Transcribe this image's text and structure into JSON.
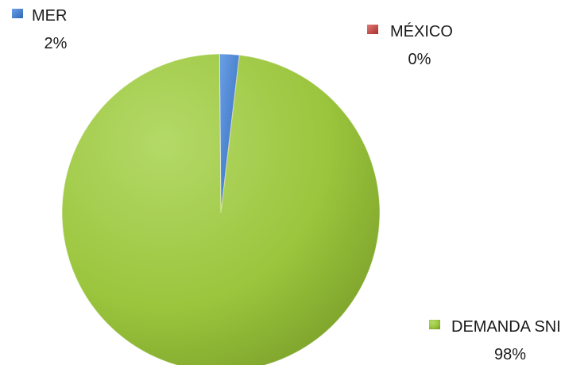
{
  "chart_data": {
    "type": "pie",
    "slices": [
      {
        "name": "MER",
        "value": 2,
        "value_label": "2%",
        "color": "#3f7fd1"
      },
      {
        "name": "MÉXICO",
        "value": 0,
        "value_label": "0%",
        "color": "#c0403c"
      },
      {
        "name": "DEMANDA SNI",
        "value": 98,
        "value_label": "98%",
        "color": "#9bc53d"
      }
    ],
    "units": "%",
    "legend": "data labels beside slices",
    "style": "3d-shaded"
  }
}
